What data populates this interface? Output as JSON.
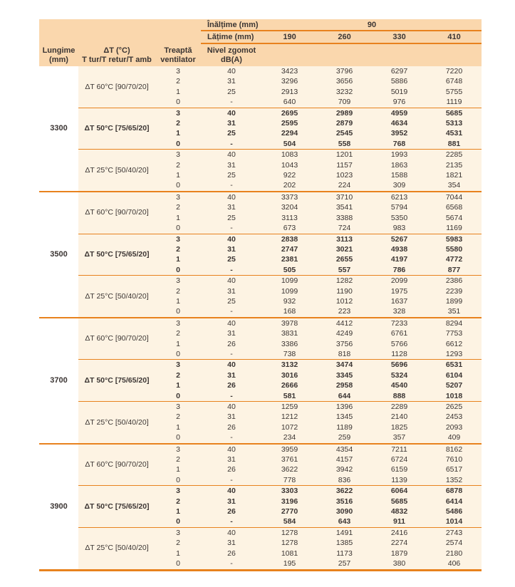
{
  "colors": {
    "band": "#fad7ad",
    "body": "#fdf3e3",
    "line": "#e8821e",
    "text": "#3b3533"
  },
  "header": {
    "inaltime_label": "Înălțime (mm)",
    "inaltime_value": "90",
    "latime_label": "Lățime (mm)",
    "width_values": [
      "190",
      "260",
      "330",
      "410"
    ],
    "col_lungime": [
      "Lungime",
      "(mm)"
    ],
    "col_dt": [
      "ΔT (°C)",
      "T tur/T retur/T amb"
    ],
    "col_treapta": [
      "Treaptă",
      "ventilator"
    ],
    "col_nivel": [
      "Nivel zgomot",
      "dB(A)"
    ]
  },
  "groups": [
    {
      "lungime": "3300",
      "blocks": [
        {
          "label": "ΔT 60°C [90/70/20]",
          "bold": false,
          "rows": [
            [
              "3",
              "40",
              "3423",
              "3796",
              "6297",
              "7220"
            ],
            [
              "2",
              "31",
              "3296",
              "3656",
              "5886",
              "6748"
            ],
            [
              "1",
              "25",
              "2913",
              "3232",
              "5019",
              "5755"
            ],
            [
              "0",
              "-",
              "640",
              "709",
              "976",
              "1119"
            ]
          ]
        },
        {
          "label": "ΔT 50°C [75/65/20]",
          "bold": true,
          "rows": [
            [
              "3",
              "40",
              "2695",
              "2989",
              "4959",
              "5685"
            ],
            [
              "2",
              "31",
              "2595",
              "2879",
              "4634",
              "5313"
            ],
            [
              "1",
              "25",
              "2294",
              "2545",
              "3952",
              "4531"
            ],
            [
              "0",
              "-",
              "504",
              "558",
              "768",
              "881"
            ]
          ]
        },
        {
          "label": "ΔT 25°C [50/40/20]",
          "bold": false,
          "rows": [
            [
              "3",
              "40",
              "1083",
              "1201",
              "1993",
              "2285"
            ],
            [
              "2",
              "31",
              "1043",
              "1157",
              "1863",
              "2135"
            ],
            [
              "1",
              "25",
              "922",
              "1023",
              "1588",
              "1821"
            ],
            [
              "0",
              "-",
              "202",
              "224",
              "309",
              "354"
            ]
          ]
        }
      ]
    },
    {
      "lungime": "3500",
      "blocks": [
        {
          "label": "ΔT 60°C [90/70/20]",
          "bold": false,
          "rows": [
            [
              "3",
              "40",
              "3373",
              "3710",
              "6213",
              "7044"
            ],
            [
              "2",
              "31",
              "3204",
              "3541",
              "5794",
              "6568"
            ],
            [
              "1",
              "25",
              "3113",
              "3388",
              "5350",
              "5674"
            ],
            [
              "0",
              "-",
              "673",
              "724",
              "983",
              "1169"
            ]
          ]
        },
        {
          "label": "ΔT 50°C [75/65/20]",
          "bold": true,
          "rows": [
            [
              "3",
              "40",
              "2838",
              "3113",
              "5267",
              "5983"
            ],
            [
              "2",
              "31",
              "2747",
              "3021",
              "4938",
              "5580"
            ],
            [
              "1",
              "25",
              "2381",
              "2655",
              "4197",
              "4772"
            ],
            [
              "0",
              "-",
              "505",
              "557",
              "786",
              "877"
            ]
          ]
        },
        {
          "label": "ΔT 25°C [50/40/20]",
          "bold": false,
          "rows": [
            [
              "3",
              "40",
              "1099",
              "1282",
              "2099",
              "2386"
            ],
            [
              "2",
              "31",
              "1099",
              "1190",
              "1975",
              "2239"
            ],
            [
              "1",
              "25",
              "932",
              "1012",
              "1637",
              "1899"
            ],
            [
              "0",
              "-",
              "168",
              "223",
              "328",
              "351"
            ]
          ]
        }
      ]
    },
    {
      "lungime": "3700",
      "blocks": [
        {
          "label": "ΔT 60°C [90/70/20]",
          "bold": false,
          "rows": [
            [
              "3",
              "40",
              "3978",
              "4412",
              "7233",
              "8294"
            ],
            [
              "2",
              "31",
              "3831",
              "4249",
              "6761",
              "7753"
            ],
            [
              "1",
              "26",
              "3386",
              "3756",
              "5766",
              "6612"
            ],
            [
              "0",
              "-",
              "738",
              "818",
              "1128",
              "1293"
            ]
          ]
        },
        {
          "label": "ΔT 50°C [75/65/20]",
          "bold": true,
          "rows": [
            [
              "3",
              "40",
              "3132",
              "3474",
              "5696",
              "6531"
            ],
            [
              "2",
              "31",
              "3016",
              "3345",
              "5324",
              "6104"
            ],
            [
              "1",
              "26",
              "2666",
              "2958",
              "4540",
              "5207"
            ],
            [
              "0",
              "-",
              "581",
              "644",
              "888",
              "1018"
            ]
          ]
        },
        {
          "label": "ΔT 25°C [50/40/20]",
          "bold": false,
          "rows": [
            [
              "3",
              "40",
              "1259",
              "1396",
              "2289",
              "2625"
            ],
            [
              "2",
              "31",
              "1212",
              "1345",
              "2140",
              "2453"
            ],
            [
              "1",
              "26",
              "1072",
              "1189",
              "1825",
              "2093"
            ],
            [
              "0",
              "-",
              "234",
              "259",
              "357",
              "409"
            ]
          ]
        }
      ]
    },
    {
      "lungime": "3900",
      "blocks": [
        {
          "label": "ΔT 60°C [90/70/20]",
          "bold": false,
          "rows": [
            [
              "3",
              "40",
              "3959",
              "4354",
              "7211",
              "8162"
            ],
            [
              "2",
              "31",
              "3761",
              "4157",
              "6724",
              "7610"
            ],
            [
              "1",
              "26",
              "3622",
              "3942",
              "6159",
              "6517"
            ],
            [
              "0",
              "-",
              "778",
              "836",
              "1139",
              "1352"
            ]
          ]
        },
        {
          "label": "ΔT 50°C [75/65/20]",
          "bold": true,
          "rows": [
            [
              "3",
              "40",
              "3303",
              "3622",
              "6064",
              "6878"
            ],
            [
              "2",
              "31",
              "3196",
              "3516",
              "5685",
              "6414"
            ],
            [
              "1",
              "26",
              "2770",
              "3090",
              "4832",
              "5486"
            ],
            [
              "0",
              "-",
              "584",
              "643",
              "911",
              "1014"
            ]
          ]
        },
        {
          "label": "ΔT 25°C [50/40/20]",
          "bold": false,
          "rows": [
            [
              "3",
              "40",
              "1278",
              "1491",
              "2416",
              "2743"
            ],
            [
              "2",
              "31",
              "1278",
              "1385",
              "2274",
              "2574"
            ],
            [
              "1",
              "26",
              "1081",
              "1173",
              "1879",
              "2180"
            ],
            [
              "0",
              "-",
              "195",
              "257",
              "380",
              "406"
            ]
          ]
        }
      ]
    }
  ]
}
